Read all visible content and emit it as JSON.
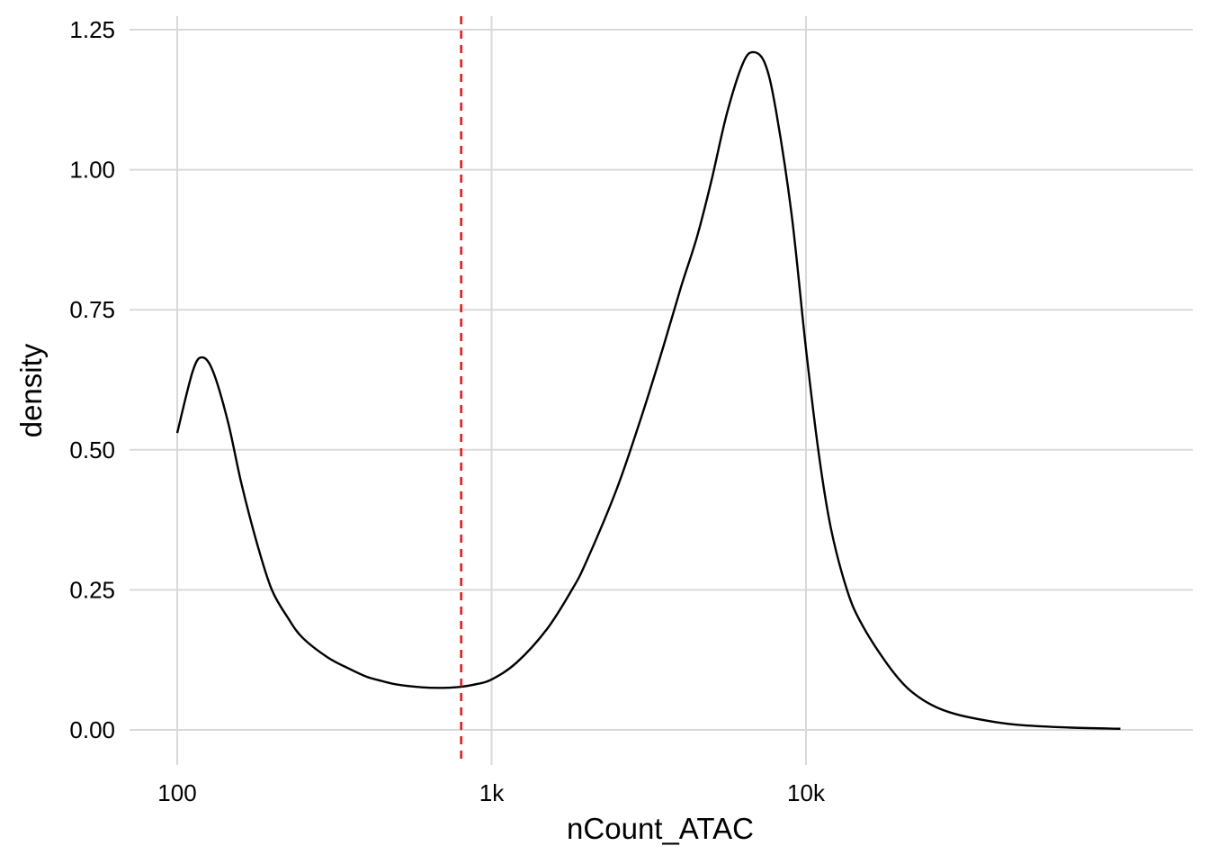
{
  "chart_data": {
    "type": "line",
    "xlabel": "nCount_ATAC",
    "ylabel": "density",
    "x_scale": "log10",
    "xlim": [
      100,
      100000
    ],
    "ylim": [
      0,
      1.25
    ],
    "grid": true,
    "x_ticks": [
      {
        "value": 100,
        "label": "100"
      },
      {
        "value": 1000,
        "label": "1k"
      },
      {
        "value": 10000,
        "label": "10k"
      }
    ],
    "y_ticks": [
      {
        "value": 0,
        "label": "0.00"
      },
      {
        "value": 0.25,
        "label": "0.25"
      },
      {
        "value": 0.5,
        "label": "0.50"
      },
      {
        "value": 0.75,
        "label": "0.75"
      },
      {
        "value": 1.0,
        "label": "1.00"
      },
      {
        "value": 1.25,
        "label": "1.25"
      }
    ],
    "series": [
      {
        "color": "#000000",
        "x": [
          100,
          112,
          120,
          130,
          145,
          160,
          180,
          200,
          225,
          250,
          300,
          350,
          400,
          450,
          500,
          600,
          700,
          800,
          900,
          1000,
          1200,
          1500,
          1800,
          2000,
          2500,
          3000,
          3500,
          4000,
          4500,
          5000,
          5600,
          6300,
          6800,
          7400,
          8000,
          9000,
          10000,
          11000,
          12000,
          13500,
          15000,
          18000,
          21000,
          25000,
          30000,
          40000,
          50000,
          70000,
          100000
        ],
        "y": [
          0.53,
          0.64,
          0.665,
          0.64,
          0.55,
          0.44,
          0.33,
          0.25,
          0.2,
          0.165,
          0.13,
          0.11,
          0.095,
          0.087,
          0.081,
          0.076,
          0.075,
          0.077,
          0.082,
          0.09,
          0.12,
          0.18,
          0.25,
          0.3,
          0.43,
          0.56,
          0.68,
          0.79,
          0.88,
          0.98,
          1.1,
          1.19,
          1.21,
          1.19,
          1.11,
          0.92,
          0.68,
          0.49,
          0.36,
          0.25,
          0.19,
          0.12,
          0.075,
          0.045,
          0.028,
          0.014,
          0.008,
          0.004,
          0.002
        ]
      }
    ],
    "threshold": {
      "x": 800,
      "color": "#ff0000",
      "style": "dashed"
    }
  }
}
